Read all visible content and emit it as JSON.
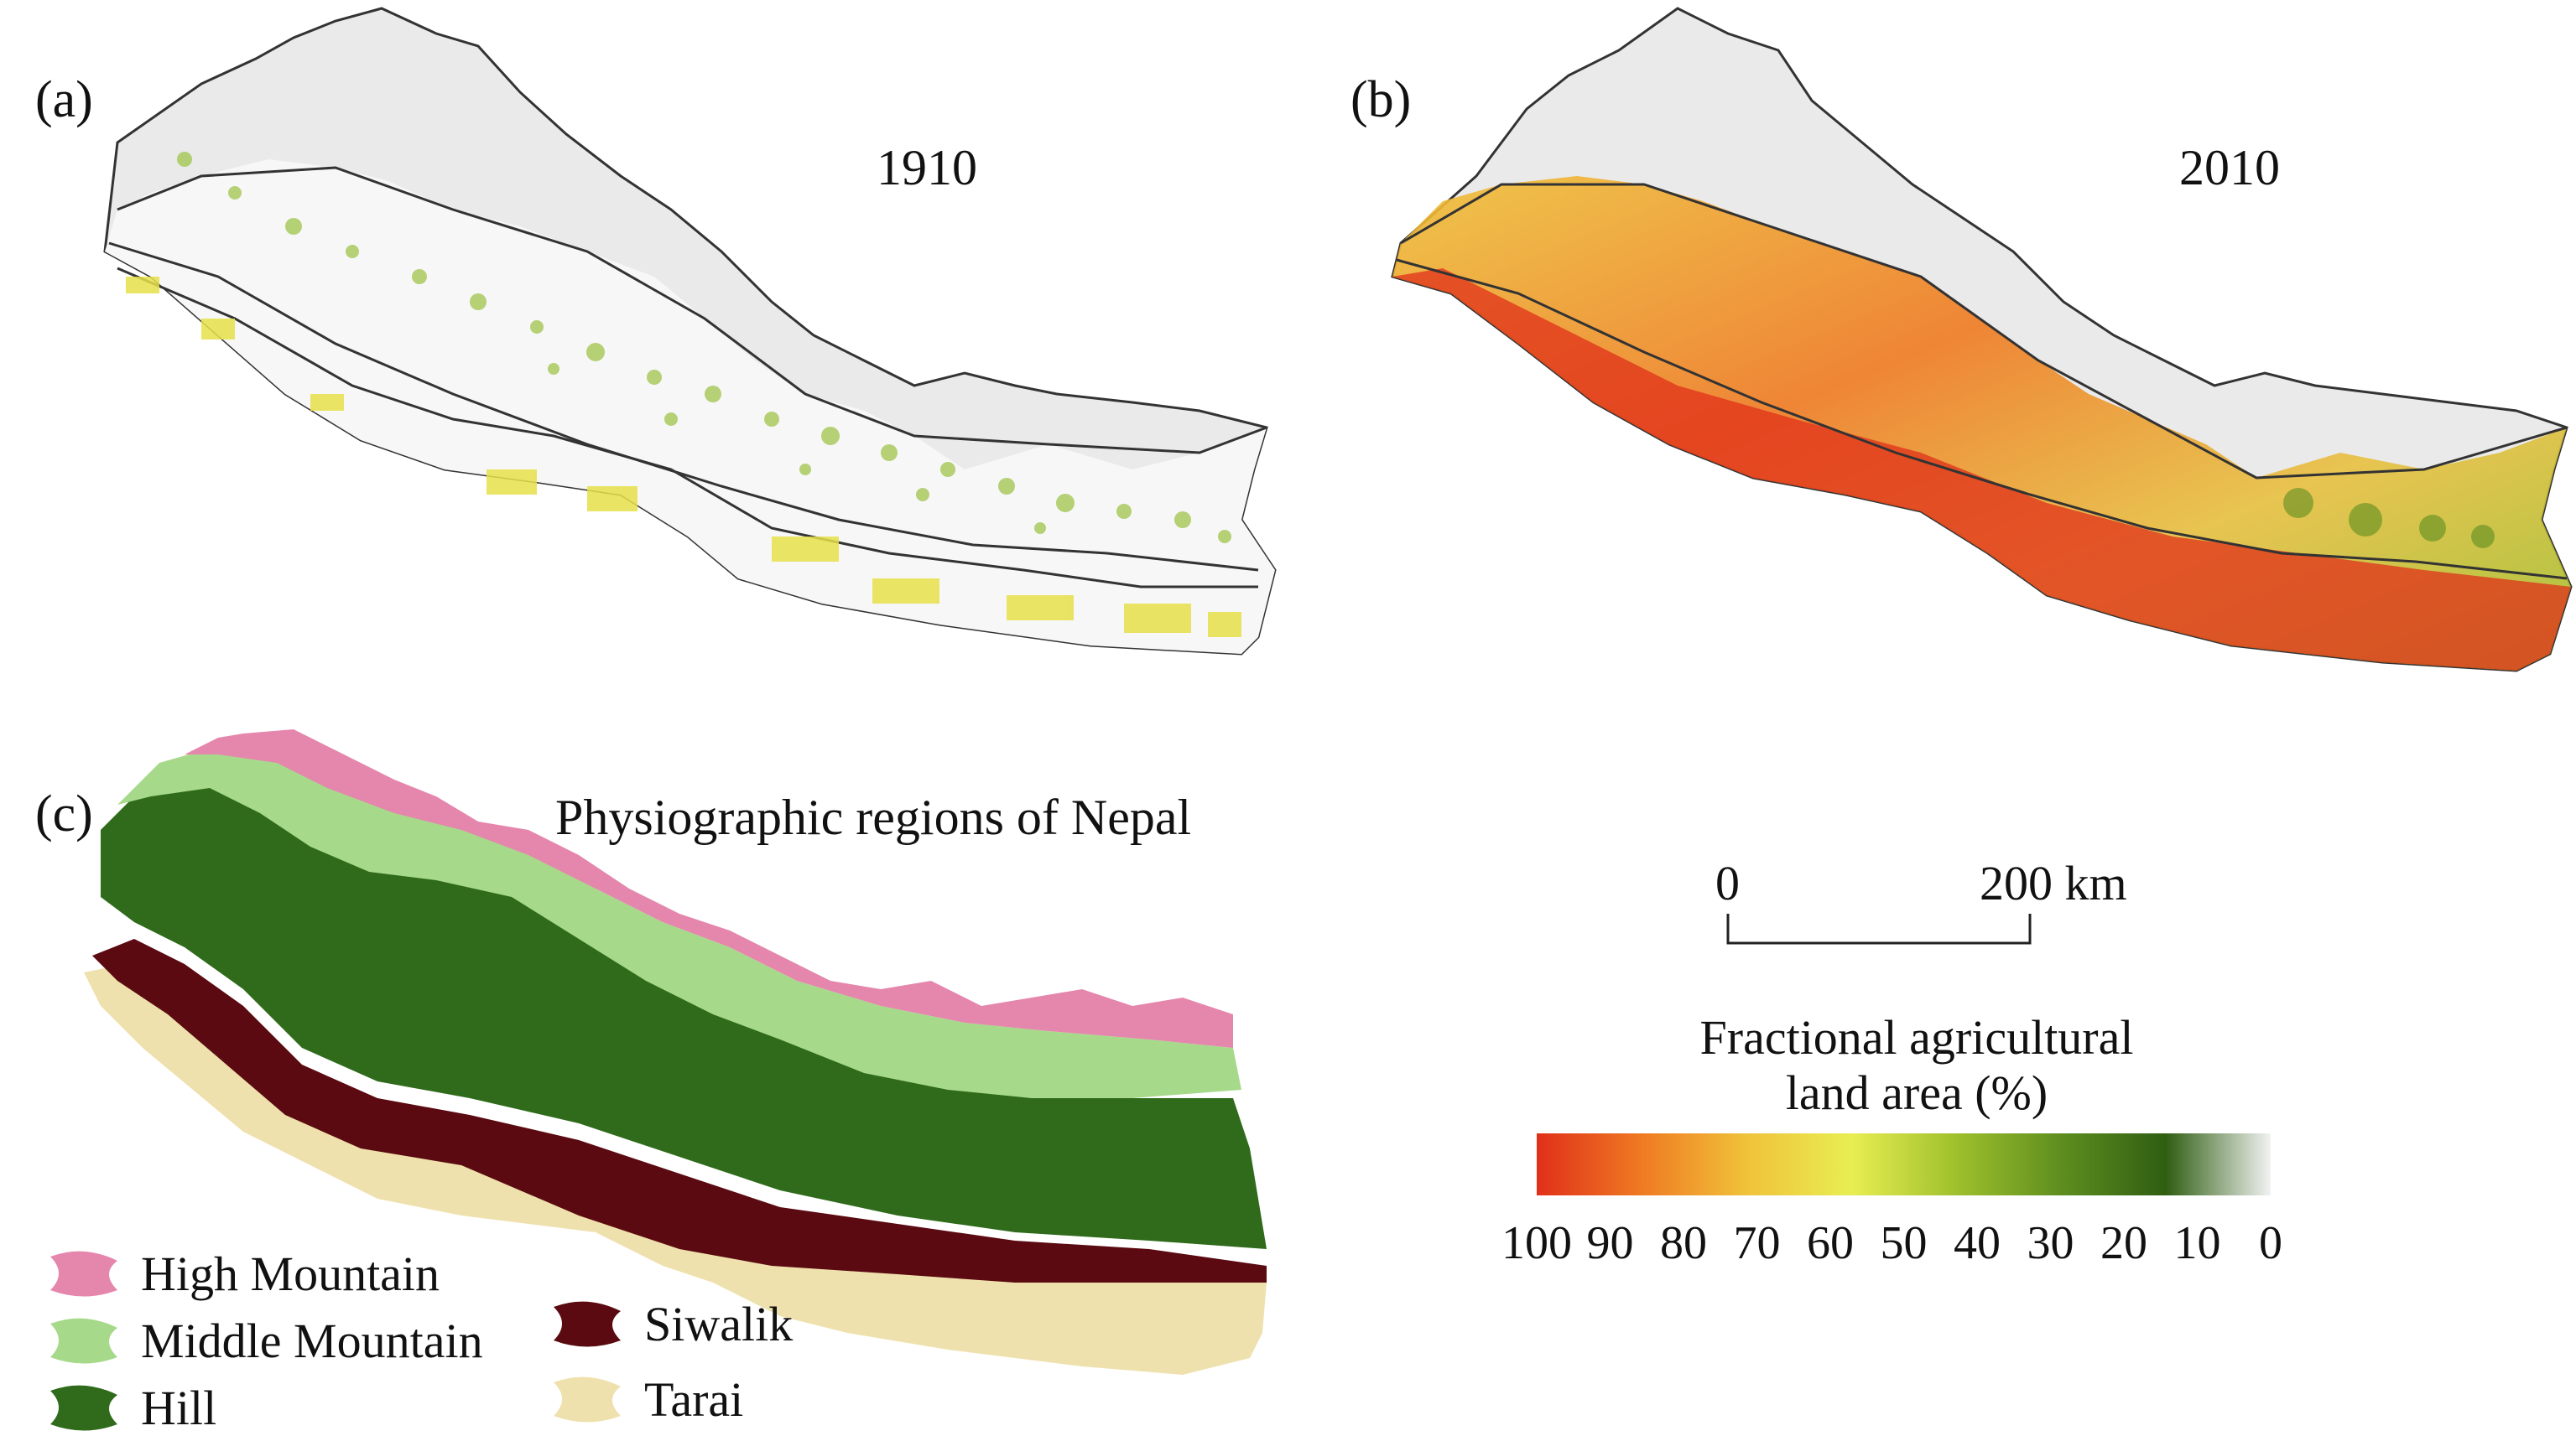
{
  "panels": {
    "a": {
      "label": "(a)",
      "year": "1910"
    },
    "b": {
      "label": "(b)",
      "year": "2010"
    },
    "c": {
      "label": "(c)",
      "title": "Physiographic regions of Nepal"
    }
  },
  "regions_legend": [
    {
      "name": "High Mountain",
      "color": "#e586ad"
    },
    {
      "name": "Middle Mountain",
      "color": "#a7d98b"
    },
    {
      "name": "Hill",
      "color": "#2f6b1b"
    },
    {
      "name": "Siwalik",
      "color": "#5a0a10"
    },
    {
      "name": "Tarai",
      "color": "#efe1ad"
    }
  ],
  "scale_bar": {
    "start": "0",
    "end": "200 km"
  },
  "colorbar": {
    "title_line1": "Fractional agricultural",
    "title_line2": "land area (%)",
    "ticks": [
      "100",
      "90",
      "80",
      "70",
      "60",
      "50",
      "40",
      "30",
      "20",
      "10",
      "0"
    ],
    "tick_values": [
      100,
      90,
      80,
      70,
      60,
      50,
      40,
      30,
      20,
      10,
      0
    ],
    "colors": [
      "#e0301a",
      "#ef7a22",
      "#f0c23a",
      "#e8ee52",
      "#9fc02c",
      "#5e8e1f",
      "#2f5e12",
      "#f2f2f2"
    ]
  },
  "colors": {
    "high_region": "#ebebeb",
    "low_region": "#f6f6f6",
    "outline": "#333333"
  }
}
